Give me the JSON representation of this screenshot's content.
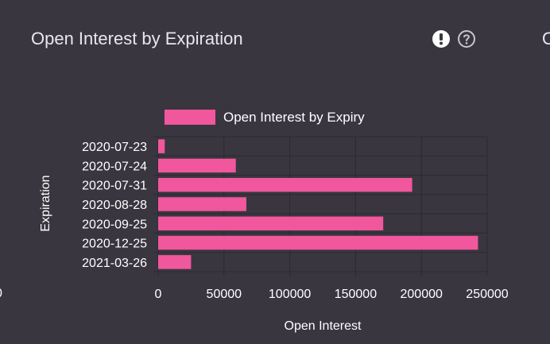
{
  "panel": {
    "title": "Open Interest by Expiration",
    "next_panel_title": "O",
    "edge_label": "0",
    "icons": [
      "alert-icon",
      "help-icon"
    ]
  },
  "colors": {
    "background": "#3a3640",
    "bar": "#f0579c",
    "grid": "#2c2931"
  },
  "chart_data": {
    "type": "bar",
    "orientation": "horizontal",
    "categories": [
      "2020-07-23",
      "2020-07-24",
      "2020-07-31",
      "2020-08-28",
      "2020-09-25",
      "2020-12-25",
      "2021-03-26"
    ],
    "series": [
      {
        "name": "Open Interest by Expiry",
        "values": [
          5000,
          59000,
          193000,
          67000,
          171000,
          243000,
          25000
        ]
      }
    ],
    "xlabel": "Open Interest",
    "ylabel": "Expiration",
    "xlim": [
      0,
      250000
    ],
    "xticks": [
      0,
      50000,
      100000,
      150000,
      200000,
      250000
    ],
    "xtick_labels": [
      "0",
      "50000",
      "100000",
      "150000",
      "200000",
      "250000"
    ],
    "legend_position": "top",
    "grid": true
  }
}
